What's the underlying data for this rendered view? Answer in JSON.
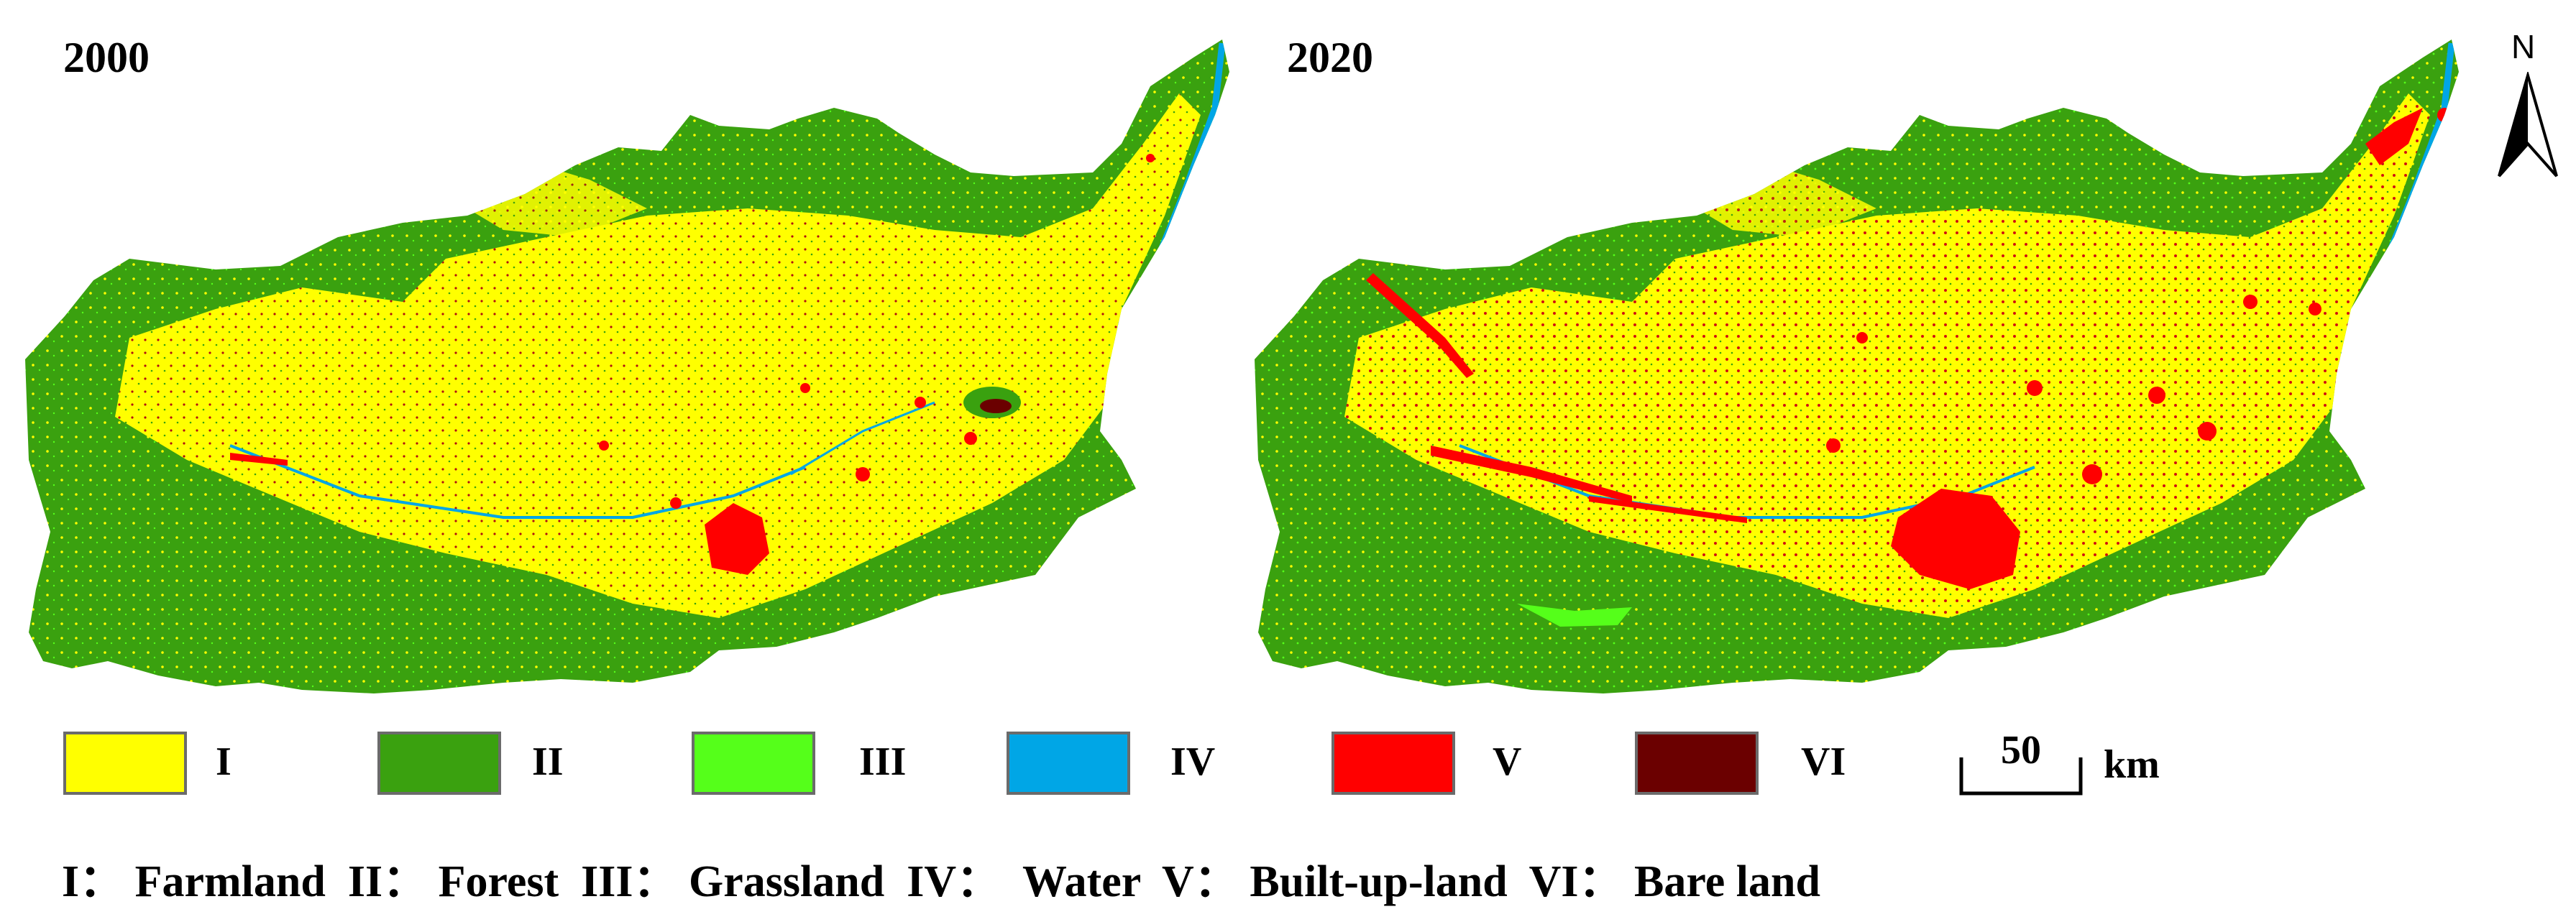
{
  "panels": [
    {
      "title": "2000"
    },
    {
      "title": "2020"
    }
  ],
  "legend": [
    {
      "code": "I",
      "color": "#ffff00"
    },
    {
      "code": "II",
      "color": "#3aa10f"
    },
    {
      "code": "III",
      "color": "#55ff1a"
    },
    {
      "code": "IV",
      "color": "#00a6e6"
    },
    {
      "code": "V",
      "color": "#ff0000"
    },
    {
      "code": "VI",
      "color": "#6b0000"
    }
  ],
  "scale_bar": {
    "value": "50",
    "unit": "km"
  },
  "north_arrow": {
    "label": "N"
  },
  "caption": "I： Farmland  II： Forest  III： Grassland  IV：  Water  V： Built-up-land  VI： Bare land"
}
